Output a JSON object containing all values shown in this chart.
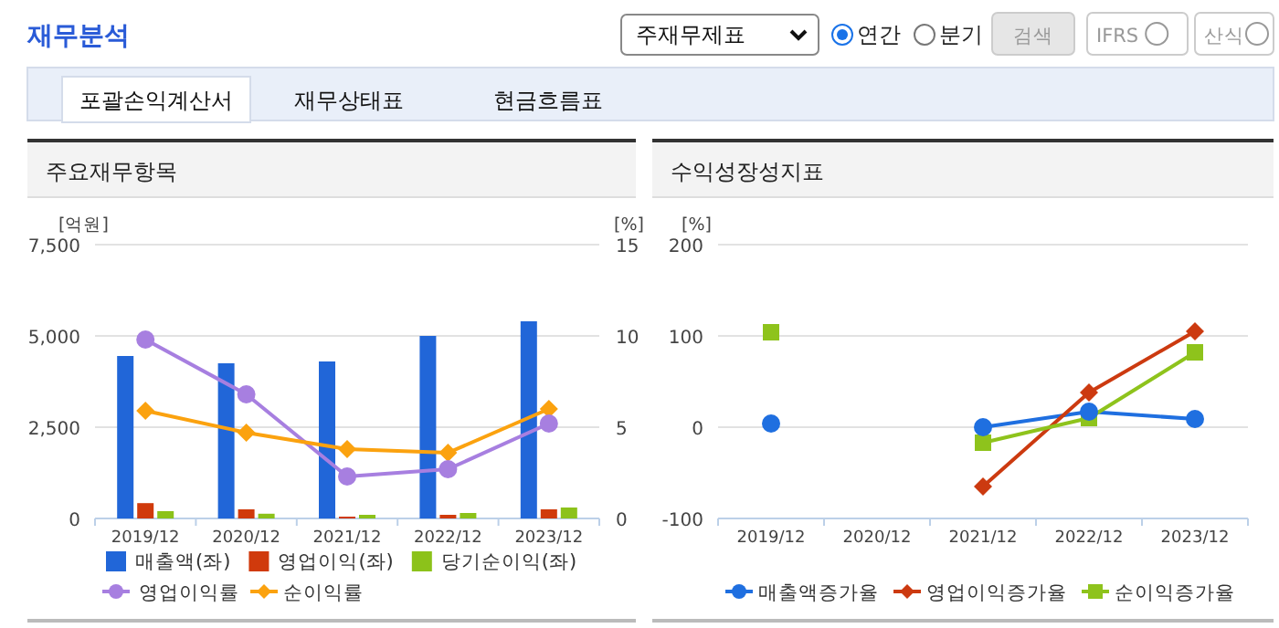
{
  "chart_data": [
    {
      "type": "other",
      "title": "재무분석",
      "annotations": [
        "주재무제표",
        "연간",
        "분기",
        "검색",
        "IFRS",
        "산식",
        "포괄손익계산서",
        "재무상태표",
        "현금흐름표"
      ]
    },
    {
      "type": "bar",
      "title": "주요재무항목",
      "ylabel": "[억원]",
      "y2label": "[%]",
      "categories": [
        "2019/12",
        "2020/12",
        "2021/12",
        "2022/12",
        "2023/12"
      ],
      "ylim": [
        0,
        7500
      ],
      "yticks": [
        0,
        {
          "value": 2500,
          "label": "2,500"
        },
        {
          "value": 5000,
          "label": "5,000"
        },
        {
          "value": 7500,
          "label": "7,500"
        }
      ],
      "y2lim": [
        0,
        15
      ],
      "y2ticks": [
        0,
        5,
        10,
        15
      ],
      "grid": "y",
      "legend": "bottom",
      "series": [
        {
          "name": "매출액(좌)",
          "color": "#2166d8",
          "values": [
            4450,
            4250,
            4300,
            5000,
            5400
          ]
        },
        {
          "name": "영업이익(좌)",
          "color": "#d03a0c",
          "values": [
            420,
            250,
            50,
            100,
            250
          ]
        },
        {
          "name": "당기순이익(좌)",
          "color": "#8cc21a",
          "values": [
            200,
            130,
            100,
            150,
            300
          ]
        },
        {
          "name": "영업이익률",
          "type": "line",
          "axis": "y2",
          "marker": "circle",
          "color": "#a77fe0",
          "values": [
            9.8,
            6.8,
            2.3,
            2.7,
            5.2
          ]
        },
        {
          "name": "순이익률",
          "type": "line",
          "axis": "y2",
          "marker": "diamond",
          "color": "#fba20f",
          "values": [
            5.9,
            4.7,
            3.8,
            3.6,
            6.0
          ]
        }
      ]
    },
    {
      "type": "line",
      "title": "수익성장성지표",
      "ylabel": "[%]",
      "categories": [
        "2019/12",
        "2020/12",
        "2021/12",
        "2022/12",
        "2023/12"
      ],
      "ylim": [
        -100,
        200
      ],
      "yticks": [
        -100,
        0,
        100,
        200
      ],
      "grid": "y",
      "legend": "bottom",
      "series": [
        {
          "name": "매출액증가율",
          "marker": "circle",
          "color": "#1f6fe0",
          "values": [
            4,
            null,
            0,
            17,
            9
          ]
        },
        {
          "name": "영업이익증가율",
          "marker": "diamond",
          "color": "#cc3a10",
          "values": [
            null,
            null,
            -65,
            38,
            105
          ]
        },
        {
          "name": "순이익증가율",
          "marker": "square",
          "color": "#8ec31c",
          "values": [
            104,
            null,
            -17,
            10,
            82
          ]
        }
      ]
    }
  ]
}
